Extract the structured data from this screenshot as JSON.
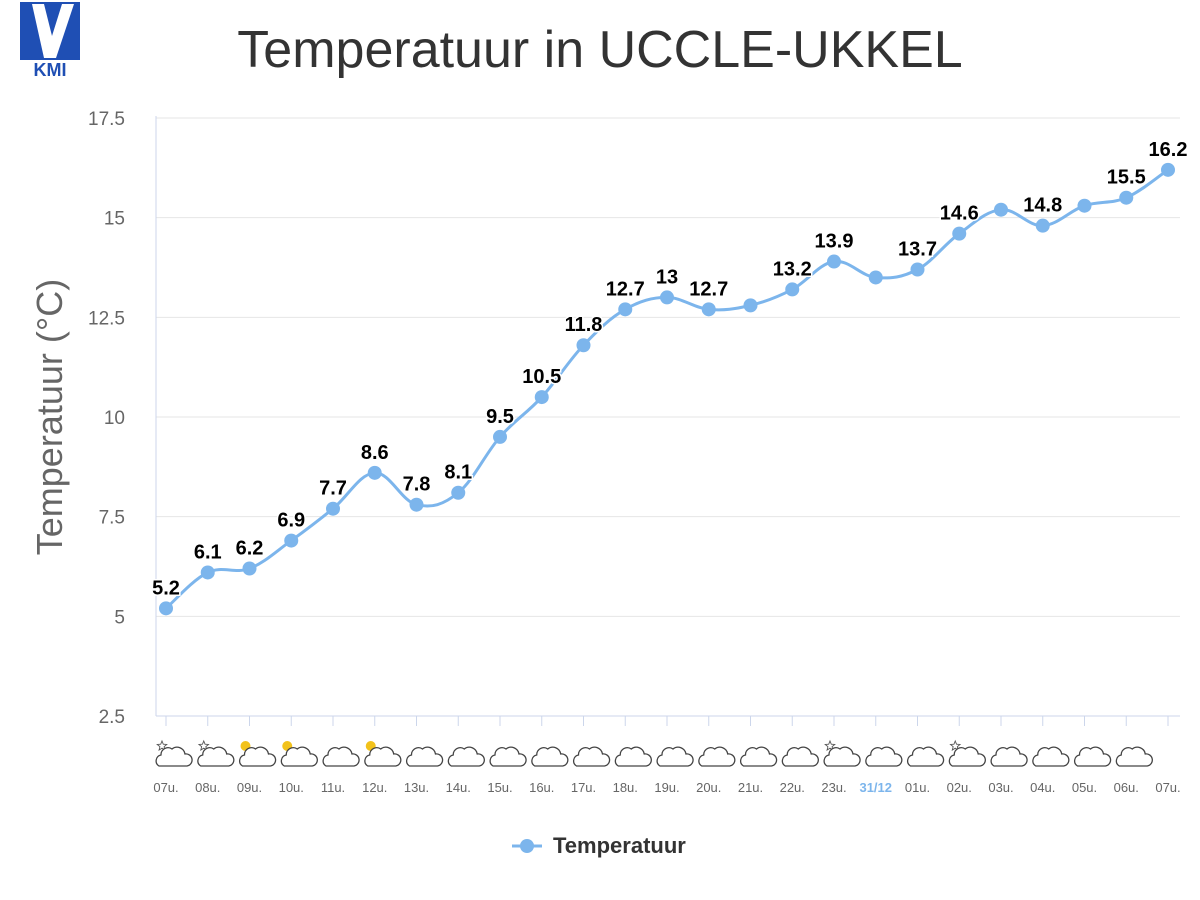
{
  "logo": {
    "text": "KMI",
    "color": "#1f4fb4"
  },
  "chart_data": {
    "type": "line",
    "title": "Temperatuur in UCCLE-UKKEL",
    "ylabel": "Temperatuur (°C)",
    "xlabel": "",
    "ylim": [
      2.5,
      17.5
    ],
    "yticks": [
      "2.5",
      "5",
      "7.5",
      "10",
      "12.5",
      "15",
      "17.5"
    ],
    "grid": true,
    "legend_position": "bottom-center",
    "categories": [
      "07u.",
      "08u.",
      "09u.",
      "10u.",
      "11u.",
      "12u.",
      "13u.",
      "14u.",
      "15u.",
      "16u.",
      "17u.",
      "18u.",
      "19u.",
      "20u.",
      "21u.",
      "22u.",
      "23u.",
      "31/12",
      "01u.",
      "02u.",
      "03u.",
      "04u.",
      "05u.",
      "06u.",
      "07u."
    ],
    "date_marker_index": 17,
    "series": [
      {
        "name": "Temperatuur",
        "color": "#7cb5ec",
        "values": [
          5.2,
          6.1,
          6.2,
          6.9,
          7.7,
          8.6,
          7.8,
          8.1,
          9.5,
          10.5,
          11.8,
          12.7,
          13.0,
          12.7,
          12.8,
          13.2,
          13.9,
          13.5,
          13.7,
          14.6,
          15.2,
          14.8,
          15.3,
          15.5,
          16.2
        ],
        "labels": [
          "5.2",
          "6.1",
          "6.2",
          "6.9",
          "7.7",
          "8.6",
          "7.8",
          "8.1",
          "9.5",
          "10.5",
          "11.8",
          "12.7",
          "13",
          "12.7",
          "",
          "13.2",
          "13.9",
          "",
          "13.7",
          "14.6",
          "",
          "14.8",
          "",
          "15.5",
          "16.2"
        ]
      }
    ],
    "weather_icons": [
      "cloud-star",
      "cloud-star",
      "cloud-sun",
      "cloud-sun",
      "cloud",
      "cloud-sun",
      "cloud",
      "cloud",
      "cloud",
      "cloud",
      "cloud",
      "cloud",
      "cloud",
      "cloud",
      "cloud",
      "cloud",
      "cloud-star",
      "cloud",
      "cloud",
      "cloud-star",
      "cloud",
      "cloud",
      "cloud",
      "cloud"
    ]
  }
}
